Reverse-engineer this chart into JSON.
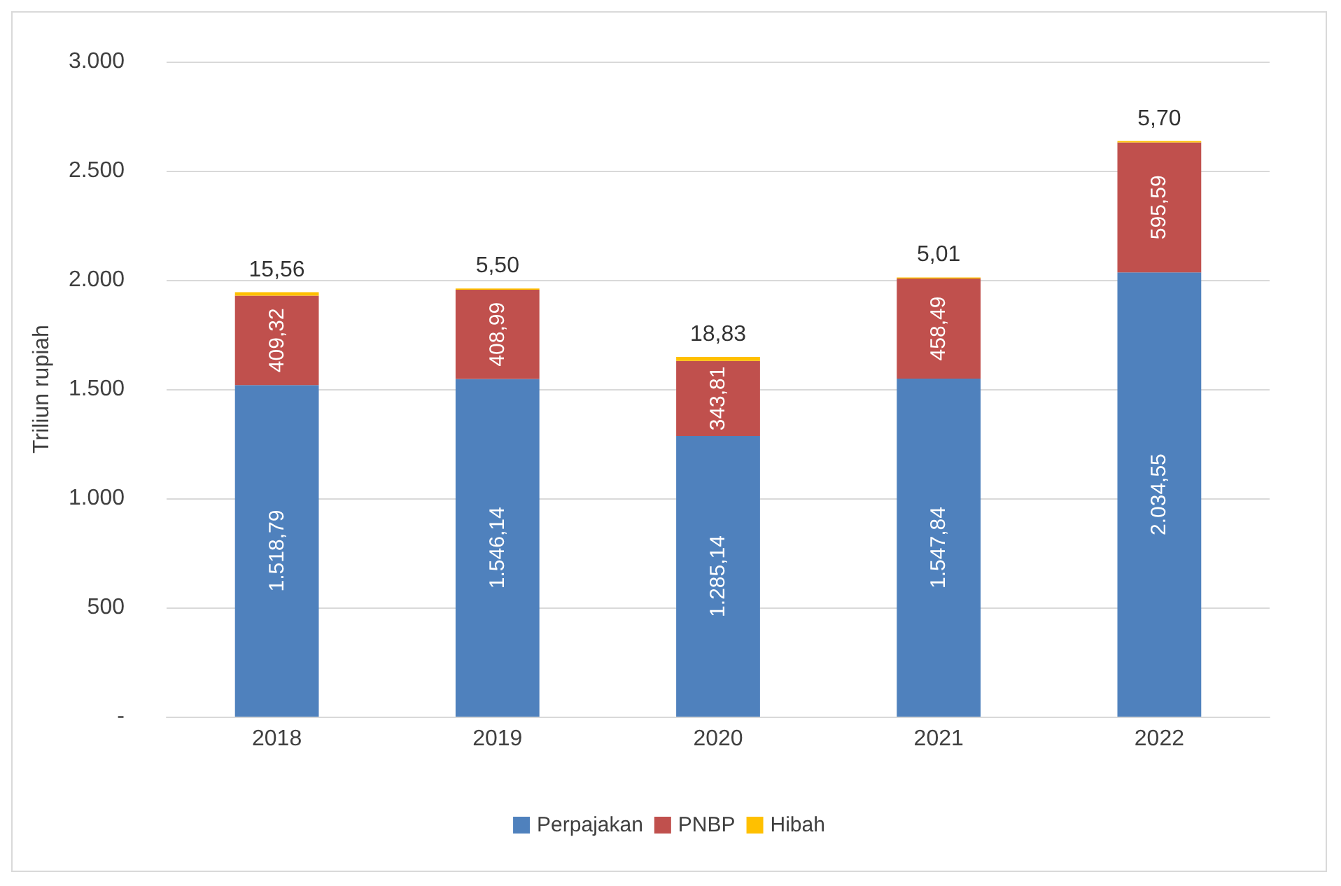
{
  "chart_data": {
    "type": "bar",
    "stacked": true,
    "ylabel": "Triliun rupiah",
    "categories": [
      "2018",
      "2019",
      "2020",
      "2021",
      "2022"
    ],
    "series": [
      {
        "name": "Perpajakan",
        "color": "#4f81bd",
        "values": [
          1518.79,
          1546.14,
          1285.14,
          1547.84,
          2034.55
        ],
        "value_labels": [
          "1.518,79",
          "1.546,14",
          "1.285,14",
          "1.547,84",
          "2.034,55"
        ]
      },
      {
        "name": "PNBP",
        "color": "#c0504d",
        "values": [
          409.32,
          408.99,
          343.81,
          458.49,
          595.59
        ],
        "value_labels": [
          "409,32",
          "408,99",
          "343,81",
          "458,49",
          "595,59"
        ]
      },
      {
        "name": "Hibah",
        "color": "#ffc000",
        "values": [
          15.56,
          5.5,
          18.83,
          5.01,
          5.7
        ],
        "value_labels": [
          "15,56",
          "5,50",
          "18,83",
          "5,01",
          "5,70"
        ]
      }
    ],
    "ylim": [
      0,
      3000
    ],
    "yticks": [
      {
        "value": 0,
        "label": "-"
      },
      500,
      {
        "value": 1000,
        "label": "1.000"
      },
      {
        "value": 1500,
        "label": "1.500"
      },
      {
        "value": 2000,
        "label": "2.000"
      },
      {
        "value": 2500,
        "label": "2.500"
      },
      {
        "value": 3000,
        "label": "3.000"
      }
    ],
    "grid": "y",
    "legend": "bottom"
  }
}
